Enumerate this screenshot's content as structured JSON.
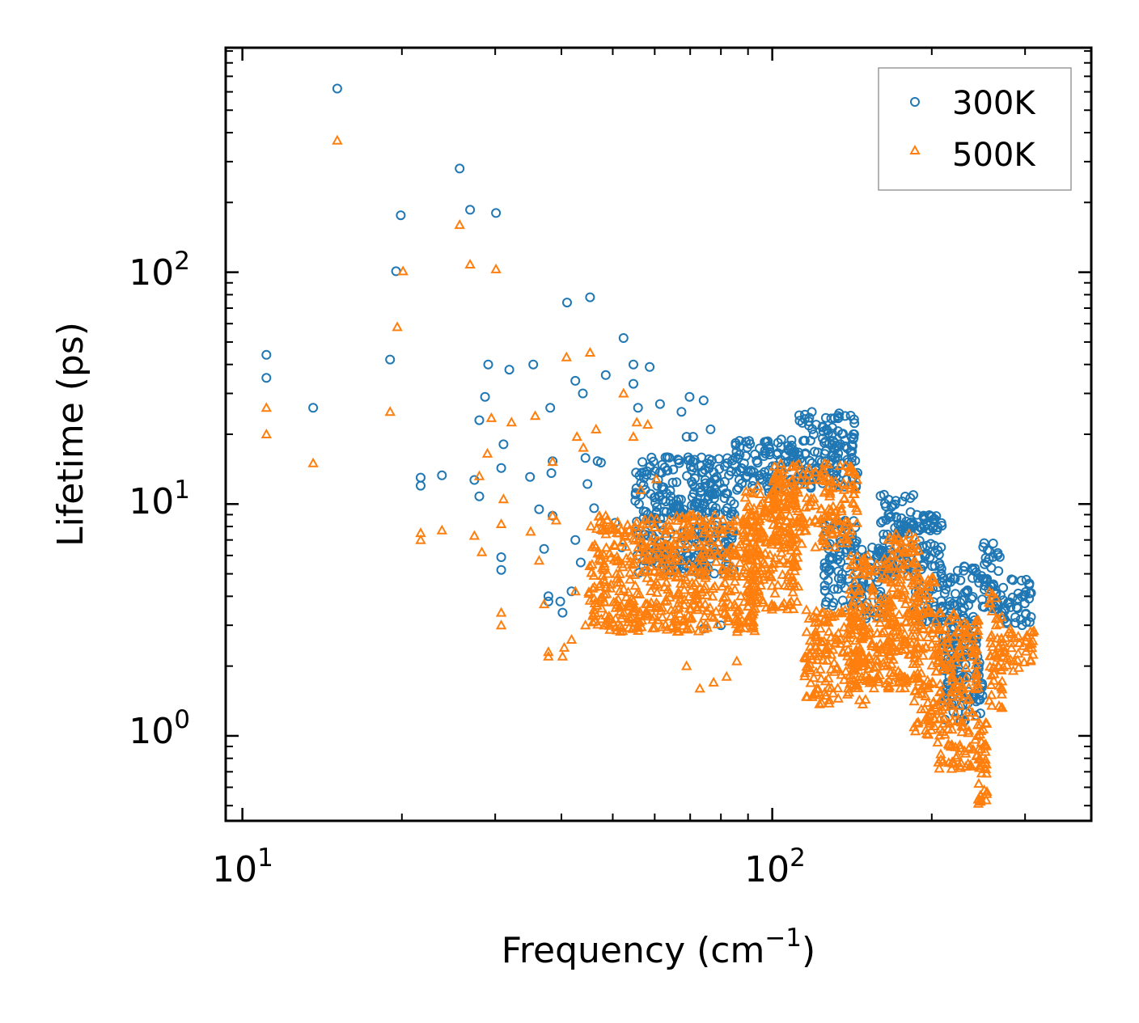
{
  "chart_data": {
    "type": "scatter",
    "title": "",
    "xlabel": "Frequency (cm",
    "xlabel_sup": "−1",
    "xlabel_end": ")",
    "ylabel": "Lifetime (ps)",
    "xscale": "log",
    "yscale": "log",
    "xlim": [
      9.3,
      400
    ],
    "ylim": [
      0.43,
      930
    ],
    "xticks": [
      {
        "base": "10",
        "exp": "1",
        "value": 10
      },
      {
        "base": "10",
        "exp": "2",
        "value": 100
      }
    ],
    "yticks": [
      {
        "base": "10",
        "exp": "0",
        "value": 1
      },
      {
        "base": "10",
        "exp": "1",
        "value": 10
      },
      {
        "base": "10",
        "exp": "2",
        "value": 100
      }
    ],
    "legend_position": "top-right",
    "series": [
      {
        "name": "300K",
        "marker": "circle",
        "color": "#1f77b4",
        "points": [
          [
            11.1,
            44
          ],
          [
            11.1,
            35
          ],
          [
            13.6,
            26
          ],
          [
            15.1,
            620
          ],
          [
            19,
            42
          ],
          [
            19.5,
            101
          ],
          [
            19.9,
            176
          ],
          [
            21.7,
            13
          ],
          [
            21.7,
            12
          ],
          [
            23.8,
            13.3
          ],
          [
            25.7,
            280
          ],
          [
            26.9,
            186
          ],
          [
            27.4,
            12.7
          ],
          [
            28,
            23
          ],
          [
            28,
            10.8
          ],
          [
            28.7,
            29
          ],
          [
            29.1,
            40
          ],
          [
            30.1,
            180
          ],
          [
            30.8,
            14.3
          ],
          [
            31.1,
            18.1
          ],
          [
            30.8,
            5.9
          ],
          [
            30.8,
            5.2
          ],
          [
            31.9,
            38
          ],
          [
            34.9,
            13.1
          ],
          [
            35.4,
            40
          ],
          [
            36.3,
            9.5
          ],
          [
            37.1,
            6.4
          ],
          [
            37.8,
            4
          ],
          [
            37.8,
            3.8
          ],
          [
            38.1,
            26
          ],
          [
            38.3,
            13.6
          ],
          [
            38.5,
            15.3
          ],
          [
            38.5,
            8.9
          ],
          [
            39.8,
            3.8
          ],
          [
            40.2,
            3.4
          ],
          [
            41,
            74
          ],
          [
            41.8,
            4.2
          ],
          [
            42.5,
            7
          ],
          [
            42.5,
            34
          ],
          [
            43.5,
            5.6
          ],
          [
            43.9,
            30
          ],
          [
            44.4,
            15.8
          ],
          [
            44.8,
            12.2
          ],
          [
            45.3,
            78
          ],
          [
            46.1,
            9.6
          ],
          [
            46.8,
            15.3
          ],
          [
            47.5,
            15.1
          ],
          [
            48.5,
            36
          ],
          [
            50.5,
            8.3
          ],
          [
            52,
            6.5
          ],
          [
            52.4,
            52
          ],
          [
            54.7,
            33
          ],
          [
            54.7,
            40
          ],
          [
            55.8,
            26
          ],
          [
            57.2,
            9.3
          ],
          [
            58.7,
            39
          ],
          [
            61.4,
            27
          ],
          [
            67.4,
            25
          ],
          [
            68.9,
            19.5
          ],
          [
            69.8,
            29
          ],
          [
            70.9,
            19.5
          ],
          [
            74.2,
            28
          ],
          [
            74.2,
            2.9
          ],
          [
            76.5,
            21
          ],
          [
            80,
            3
          ]
        ],
        "bands": [
          {
            "x": [
              55,
              85
            ],
            "y_lo": 5,
            "y_hi": 16
          },
          {
            "x": [
              85,
              112
            ],
            "y_lo": 11,
            "y_hi": 19
          },
          {
            "x": [
              112,
              145
            ],
            "y_lo": 11.5,
            "y_hi": 25
          },
          {
            "x": [
              125,
              145
            ],
            "y_lo": 3.5,
            "y_hi": 8.5
          },
          {
            "x": [
              145,
              165
            ],
            "y_lo": 3.2,
            "y_hi": 6.5
          },
          {
            "x": [
              160,
              185
            ],
            "y_lo": 4.5,
            "y_hi": 11
          },
          {
            "x": [
              185,
              210
            ],
            "y_lo": 3,
            "y_hi": 9
          },
          {
            "x": [
              210,
              250
            ],
            "y_lo": 1.15,
            "y_hi": 5.5
          },
          {
            "x": [
              250,
              270
            ],
            "y_lo": 3.5,
            "y_hi": 6.8
          },
          {
            "x": [
              270,
              310
            ],
            "y_lo": 3,
            "y_hi": 4.8
          }
        ]
      },
      {
        "name": "500K",
        "marker": "triangle",
        "color": "#ff7f0e",
        "points": [
          [
            11.1,
            26
          ],
          [
            11.1,
            20
          ],
          [
            13.6,
            15
          ],
          [
            15.1,
            370
          ],
          [
            19,
            25
          ],
          [
            19.6,
            58
          ],
          [
            20.1,
            101
          ],
          [
            21.7,
            7.5
          ],
          [
            21.7,
            7
          ],
          [
            23.8,
            7.7
          ],
          [
            25.7,
            160
          ],
          [
            26.9,
            108
          ],
          [
            27.4,
            7.3
          ],
          [
            28,
            13.2
          ],
          [
            28.3,
            6.2
          ],
          [
            29,
            16.5
          ],
          [
            29.5,
            23.5
          ],
          [
            30.1,
            103
          ],
          [
            30.8,
            8.2
          ],
          [
            31.1,
            10.5
          ],
          [
            30.8,
            3.4
          ],
          [
            30.8,
            3
          ],
          [
            32.2,
            22.5
          ],
          [
            35,
            7.6
          ],
          [
            35.7,
            24
          ],
          [
            36.3,
            5.7
          ],
          [
            37.1,
            3.7
          ],
          [
            37.8,
            2.3
          ],
          [
            37.8,
            2.2
          ],
          [
            38.5,
            15.2
          ],
          [
            38.5,
            8.9
          ],
          [
            39.1,
            8.5
          ],
          [
            40.2,
            2.2
          ],
          [
            40.5,
            2.4
          ],
          [
            40.9,
            43
          ],
          [
            41.8,
            2.6
          ],
          [
            42.5,
            4.2
          ],
          [
            42.8,
            19.5
          ],
          [
            44,
            17.5
          ],
          [
            44.4,
            3
          ],
          [
            45.3,
            45
          ],
          [
            46.5,
            21
          ],
          [
            47.1,
            6.2
          ],
          [
            48.5,
            8.9
          ],
          [
            50.5,
            6.6
          ],
          [
            51.5,
            3.6
          ],
          [
            52.4,
            30
          ],
          [
            53.5,
            3.1
          ],
          [
            54.7,
            19.5
          ],
          [
            55.5,
            22.5
          ],
          [
            56.5,
            11.5
          ],
          [
            58.2,
            22
          ],
          [
            60.4,
            12.8
          ],
          [
            68.9,
            2
          ],
          [
            73,
            1.6
          ],
          [
            77.5,
            1.7
          ],
          [
            82,
            1.8
          ],
          [
            85.7,
            2.1
          ]
        ],
        "bands": [
          {
            "x": [
              45,
              95
            ],
            "y_lo": 2.8,
            "y_hi": 9
          },
          {
            "x": [
              88,
              112
            ],
            "y_lo": 3.5,
            "y_hi": 12
          },
          {
            "x": [
              100,
              145
            ],
            "y_lo": 6.5,
            "y_hi": 15
          },
          {
            "x": [
              115,
              150
            ],
            "y_lo": 1.35,
            "y_hi": 3.5
          },
          {
            "x": [
              140,
              170
            ],
            "y_lo": 1.6,
            "y_hi": 6
          },
          {
            "x": [
              165,
              190
            ],
            "y_lo": 1.6,
            "y_hi": 7.5
          },
          {
            "x": [
              185,
              205
            ],
            "y_lo": 1,
            "y_hi": 5
          },
          {
            "x": [
              205,
              245
            ],
            "y_lo": 0.72,
            "y_hi": 3.4
          },
          {
            "x": [
              243,
              255
            ],
            "y_lo": 0.5,
            "y_hi": 1.2
          },
          {
            "x": [
              255,
              272
            ],
            "y_lo": 1.3,
            "y_hi": 4.2
          },
          {
            "x": [
              272,
              312
            ],
            "y_lo": 1.9,
            "y_hi": 2.9
          }
        ]
      }
    ]
  }
}
